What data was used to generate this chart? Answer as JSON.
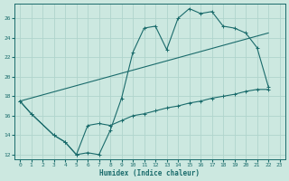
{
  "xlabel": "Humidex (Indice chaleur)",
  "bg_color": "#cce8e0",
  "grid_color": "#b0d4cc",
  "line_color": "#1a6b6b",
  "xlim": [
    -0.5,
    23.5
  ],
  "ylim": [
    11.5,
    27.5
  ],
  "yticks": [
    12,
    14,
    16,
    18,
    20,
    22,
    24,
    26
  ],
  "xticks": [
    0,
    1,
    2,
    3,
    4,
    5,
    6,
    7,
    8,
    9,
    10,
    11,
    12,
    13,
    14,
    15,
    16,
    17,
    18,
    19,
    20,
    21,
    22,
    23
  ],
  "curve1_x": [
    0,
    1,
    3,
    4,
    5,
    6,
    7,
    8,
    9,
    10,
    11,
    12,
    13,
    14,
    15,
    16,
    17,
    18,
    19,
    20,
    21,
    22
  ],
  "curve1_y": [
    17.5,
    16.2,
    14.0,
    13.3,
    12.0,
    12.2,
    12.0,
    14.5,
    17.8,
    22.5,
    25.0,
    25.2,
    22.8,
    26.0,
    27.0,
    26.5,
    26.7,
    25.2,
    25.0,
    24.5,
    23.0,
    19.0
  ],
  "curve2_x": [
    0,
    1,
    3,
    4,
    5,
    6,
    7,
    8,
    9,
    10,
    11,
    12,
    13,
    14,
    15,
    16,
    17,
    18,
    19,
    20,
    21,
    22
  ],
  "curve2_y": [
    17.5,
    16.2,
    14.0,
    13.3,
    12.0,
    15.0,
    15.2,
    15.0,
    15.5,
    16.0,
    16.2,
    16.5,
    16.8,
    17.0,
    17.3,
    17.5,
    17.8,
    18.0,
    18.2,
    18.5,
    18.7,
    18.7
  ],
  "line3_x": [
    0,
    22
  ],
  "line3_y": [
    17.5,
    24.5
  ]
}
